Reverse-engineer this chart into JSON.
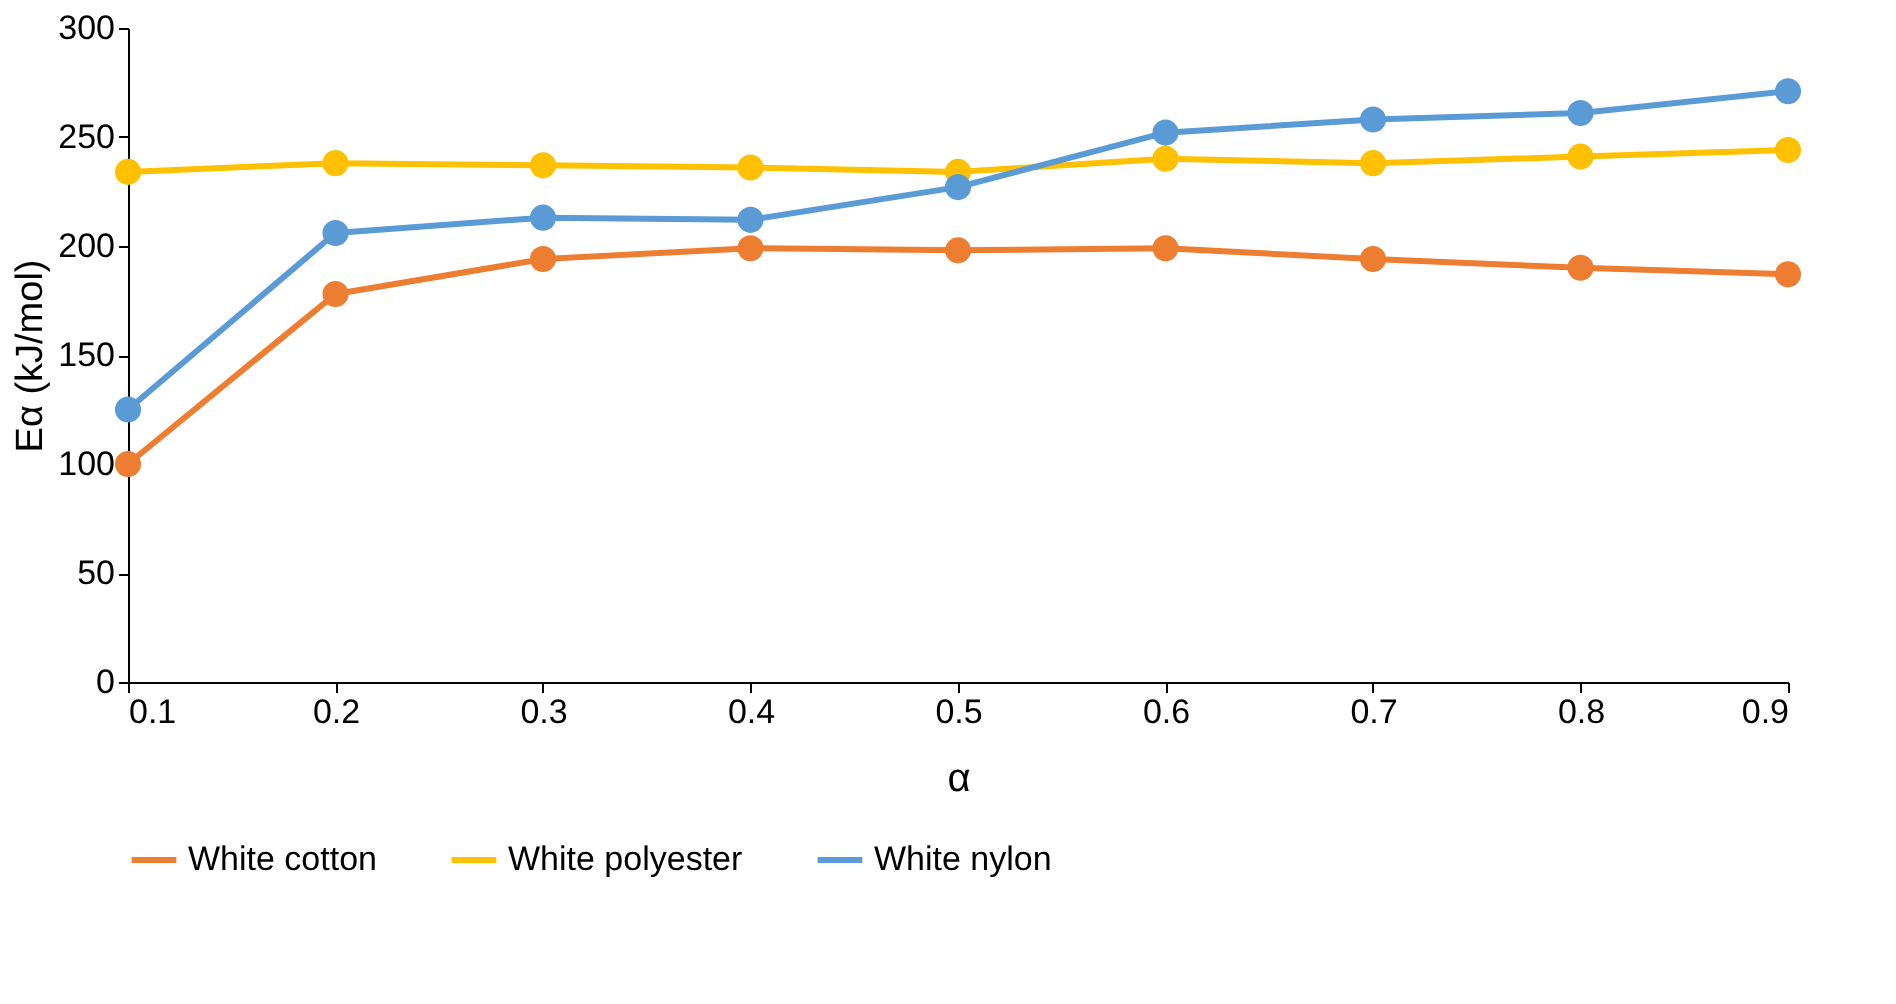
{
  "chart_data": {
    "type": "line",
    "xlabel": "α",
    "ylabel": "Eα (kJ/mol)",
    "x": [
      0.1,
      0.2,
      0.3,
      0.4,
      0.5,
      0.6,
      0.7,
      0.8,
      0.9
    ],
    "series": [
      {
        "name": "White cotton",
        "color": "#ed7d31",
        "values": [
          100,
          178,
          194,
          199,
          198,
          199,
          194,
          190,
          187
        ]
      },
      {
        "name": "White polyester",
        "color": "#ffc000",
        "values": [
          234,
          238,
          237,
          236,
          234,
          240,
          238,
          241,
          244
        ]
      },
      {
        "name": "White nylon",
        "color": "#5b9bd5",
        "values": [
          125,
          206,
          213,
          212,
          227,
          252,
          258,
          261,
          271
        ]
      }
    ],
    "xlim": [
      0.1,
      0.9
    ],
    "xticks": [
      0.1,
      0.2,
      0.3,
      0.4,
      0.5,
      0.6,
      0.7,
      0.8,
      0.9
    ],
    "ylim": [
      0,
      300
    ],
    "yticks": [
      0,
      50,
      100,
      150,
      200,
      250,
      300
    ],
    "grid": false,
    "legend": "bottom",
    "marker": "circle",
    "line_style": "solid"
  }
}
